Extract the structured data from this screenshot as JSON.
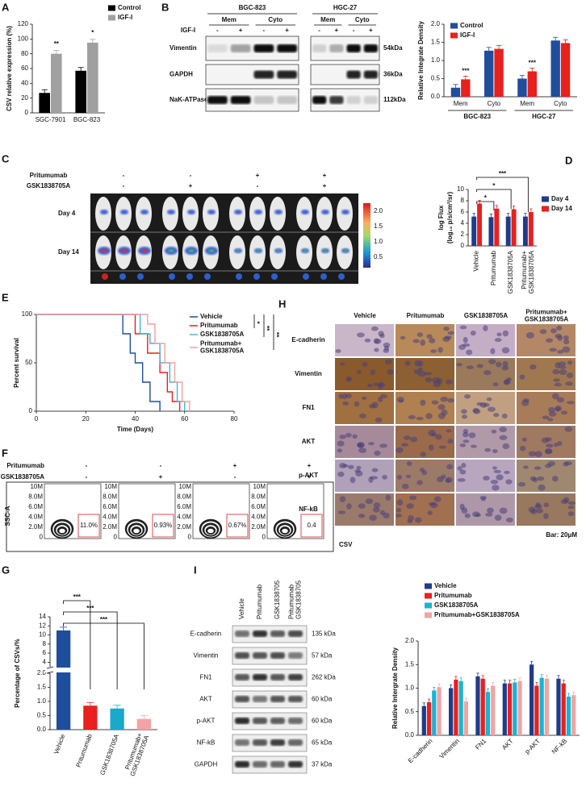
{
  "panel_labels": [
    "A",
    "B",
    "C",
    "D",
    "E",
    "F",
    "G",
    "H",
    "I"
  ],
  "chart_data": [
    {
      "type": "bar",
      "categories": [
        "SGC-7901",
        "BGC-823"
      ],
      "series": [
        {
          "name": "Control",
          "color": "#000000",
          "values": [
            27,
            57
          ]
        },
        {
          "name": "IGF-I",
          "color": "#a0a0a0",
          "values": [
            80,
            95
          ]
        }
      ],
      "ylabel": "CSV relative expression (%)",
      "ylim": [
        0,
        120
      ],
      "yticks": [
        0,
        20,
        40,
        60,
        80,
        100,
        120
      ],
      "legend": "upper right",
      "annotations": [
        "**",
        "*"
      ]
    },
    {
      "type": "bar",
      "categories": [
        "Mem",
        "Cyto",
        "Mem",
        "Cyto"
      ],
      "groups": [
        "BGC-823",
        "HGC-27"
      ],
      "series": [
        {
          "name": "Control",
          "color": "#1f4e9c",
          "values": [
            0.25,
            1.27,
            0.5,
            1.55
          ]
        },
        {
          "name": "IGF-I",
          "color": "#e8201e",
          "values": [
            0.48,
            1.32,
            0.7,
            1.48
          ]
        }
      ],
      "ylabel": "Relative Integrate Density",
      "ylim": [
        0,
        2
      ],
      "yticks": [
        {
          "value": 0,
          "label": "0.0"
        },
        {
          "value": 0.5,
          "label": "0.5"
        },
        {
          "value": 1,
          "label": "1.0"
        },
        {
          "value": 1.5,
          "label": "1.5"
        },
        {
          "value": 2,
          "label": "2.0"
        }
      ],
      "legend": "upper left",
      "annotations": [
        "***",
        "***"
      ]
    },
    {
      "type": "bar",
      "categories": [
        "Vehicle",
        "Pritumumab",
        "GSK1838705A",
        "Pritumumab+\nGSK1838705A"
      ],
      "series": [
        {
          "name": "Day 4",
          "color": "#1f3c88",
          "values": [
            5.2,
            5.1,
            5.2,
            5.2
          ]
        },
        {
          "name": "Day 14",
          "color": "#e8201e",
          "values": [
            7.5,
            6.6,
            6.5,
            6.0
          ]
        }
      ],
      "ylabel": "log Flux",
      "ylabel2": "(log₁₀ p/s/cm²/sr)",
      "ylim": [
        0,
        10
      ],
      "yticks": [
        0,
        2,
        4,
        6,
        8,
        10
      ],
      "legend": "right",
      "annotations": [
        "*",
        "*",
        "***"
      ]
    },
    {
      "type": "line",
      "xlabel": "Time (Days)",
      "ylabel": "Percent survival",
      "xlim": [
        0,
        80
      ],
      "xticks": [
        0,
        20,
        40,
        60,
        80
      ],
      "ylim": [
        0,
        100
      ],
      "yticks": [
        0,
        50,
        100
      ],
      "legend": "upper right",
      "annotations": [
        "*",
        "**",
        "**"
      ],
      "series": [
        {
          "name": "Vehicle",
          "color": "#1f4e9c",
          "x": [
            0,
            35,
            35,
            38,
            38,
            40,
            40,
            43,
            43,
            46,
            46,
            50,
            50
          ],
          "values": [
            100,
            100,
            80,
            80,
            60,
            60,
            50,
            50,
            30,
            30,
            10,
            10,
            0
          ]
        },
        {
          "name": "Pritumumab",
          "color": "#e8201e",
          "x": [
            0,
            40,
            40,
            45,
            45,
            50,
            50,
            53,
            53,
            55,
            55,
            58,
            58
          ],
          "values": [
            100,
            100,
            80,
            80,
            60,
            60,
            40,
            40,
            20,
            20,
            10,
            10,
            0
          ]
        },
        {
          "name": "GSK1838705A",
          "color": "#46b4d4",
          "x": [
            0,
            42,
            42,
            46,
            46,
            50,
            50,
            54,
            54,
            57,
            57,
            60,
            60
          ],
          "values": [
            100,
            100,
            80,
            80,
            70,
            70,
            50,
            50,
            30,
            30,
            10,
            10,
            0
          ]
        },
        {
          "name": "Pritumumab+\nGSK1838705A",
          "color": "#f2a0a0",
          "x": [
            0,
            45,
            45,
            48,
            48,
            52,
            52,
            56,
            56,
            59,
            59,
            62,
            62
          ],
          "values": [
            100,
            100,
            90,
            90,
            70,
            70,
            50,
            50,
            30,
            30,
            10,
            10,
            0
          ]
        }
      ]
    },
    {
      "type": "bar",
      "categories": [
        "Vehicle",
        "Pritumumab",
        "GSK1838705A",
        "Pritumumab+\nGSK1838705A"
      ],
      "values": [
        11,
        0.85,
        0.75,
        0.38
      ],
      "colors": [
        "#1f4e9c",
        "#e8201e",
        "#19a9c9",
        "#f2a3a3"
      ],
      "ylabel": "Percentage of CSVs/%",
      "segments": [
        {
          "ylim": [
            0,
            2
          ],
          "yticks": [
            {
              "value": 0,
              "label": "0.0"
            },
            {
              "value": 0.5,
              "label": "0.5"
            },
            {
              "value": 1,
              "label": "1.0"
            },
            {
              "value": 1.5,
              "label": "1.5"
            },
            {
              "value": 2,
              "label": "2.0"
            }
          ]
        },
        {
          "ylim": [
            3,
            14
          ],
          "yticks": [
            4,
            6,
            8,
            10,
            12,
            14
          ]
        }
      ],
      "annotations": [
        "***",
        "***",
        "***"
      ]
    },
    {
      "type": "bar",
      "categories": [
        "E-cadherin",
        "Vimentin",
        "FN1",
        "AKT",
        "p-AKT",
        "NF-kB"
      ],
      "series": [
        {
          "name": "Vehicle",
          "color": "#1f3c88",
          "values": [
            0.62,
            1.0,
            1.25,
            1.1,
            1.5,
            1.2
          ]
        },
        {
          "name": "Pritumumab",
          "color": "#e8201e",
          "values": [
            0.7,
            1.18,
            1.2,
            1.1,
            1.05,
            1.1
          ]
        },
        {
          "name": "GSK1838705A",
          "color": "#19b4d4",
          "values": [
            0.95,
            1.15,
            0.92,
            1.12,
            1.22,
            0.82
          ]
        },
        {
          "name": "Pritumumab+GSK1838705A",
          "color": "#f2a3a3",
          "values": [
            1.02,
            0.72,
            1.05,
            1.15,
            1.2,
            0.85
          ]
        }
      ],
      "ylabel": "Relative Intergrate Density",
      "ylim": [
        0,
        2
      ],
      "yticks": [
        {
          "value": 0,
          "label": "0.0"
        },
        {
          "value": 0.5,
          "label": "0.5"
        },
        {
          "value": 1,
          "label": "1.0"
        },
        {
          "value": 1.5,
          "label": "1.5"
        },
        {
          "value": 2,
          "label": "2.0"
        }
      ],
      "legend": "top"
    }
  ],
  "blot_b": {
    "cell_lines": [
      "BGC-823",
      "HGC-27"
    ],
    "fractions": [
      "Mem",
      "Cyto"
    ],
    "treatment": "IGF-I",
    "signs": [
      "-",
      "+"
    ],
    "rows": [
      {
        "name": "Vimentin",
        "size": "54kDa"
      },
      {
        "name": "GAPDH",
        "size": "36kDa"
      },
      {
        "name": "NaK-ATPase",
        "size": "112kDa"
      }
    ]
  },
  "imaging_c": {
    "rows": [
      {
        "name": "Pritumumab",
        "signs": [
          "-",
          "-",
          "+",
          "+"
        ]
      },
      {
        "name": "GSK1838705A",
        "signs": [
          "-",
          "+",
          "-",
          "+"
        ]
      }
    ],
    "days": [
      "Day 4",
      "Day 14"
    ],
    "colorbar": [
      "2.0",
      "1.5",
      "1.0",
      "0.5"
    ]
  },
  "flow_f": {
    "rows": [
      {
        "name": "Pritumumab",
        "signs": [
          "-",
          "-",
          "+",
          "+"
        ]
      },
      {
        "name": "GSK1838705A",
        "signs": [
          "-",
          "+",
          "-",
          "+"
        ]
      }
    ],
    "y_label": "SSC-A",
    "x_label": "CSV",
    "yticks": [
      "10M",
      "8.0M",
      "6.0M",
      "4.0M",
      "2.0M",
      "0"
    ],
    "gates": [
      "11.0%",
      "0.93%",
      "0.67%",
      "0.4"
    ]
  },
  "ihc_h": {
    "columns": [
      "Vehicle",
      "Pritumumab",
      "GSK1838705A",
      "Pritumumab+\nGSK1838705A"
    ],
    "rows": [
      "E-cadherin",
      "Vimentin",
      "FN1",
      "AKT",
      "p-AKT",
      "NF-kB"
    ],
    "scale": "Bar: 20μM"
  },
  "blot_i": {
    "lanes": [
      "Vehicle",
      "Pritumumab",
      "GSK1838705",
      "Pritumumab\nGSK1838705"
    ],
    "rows": [
      {
        "name": "E-cadherin",
        "size": "135 kDa"
      },
      {
        "name": "Vimentin",
        "size": "57 kDa"
      },
      {
        "name": "FN1",
        "size": "262 kDa"
      },
      {
        "name": "AKT",
        "size": "60 kDa"
      },
      {
        "name": "p-AKT",
        "size": "60 kDa"
      },
      {
        "name": "NF-kB",
        "size": "65 kDa"
      },
      {
        "name": "GAPDH",
        "size": "37 kDa"
      }
    ]
  }
}
